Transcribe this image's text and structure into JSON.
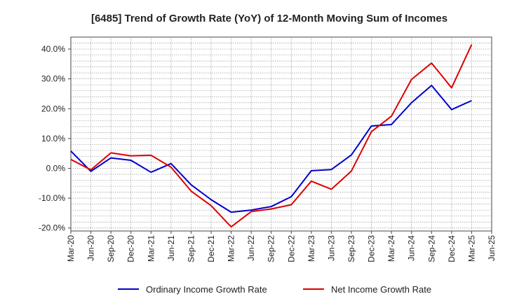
{
  "chart_data": {
    "type": "line",
    "title": "[6485]  Trend of Growth Rate (YoY) of 12-Month Moving Sum of Incomes",
    "xlabel": "",
    "ylabel": "",
    "x": [
      "Mar-20",
      "Jun-20",
      "Sep-20",
      "Dec-20",
      "Mar-21",
      "Jun-21",
      "Sep-21",
      "Dec-21",
      "Mar-22",
      "Jun-22",
      "Sep-22",
      "Dec-22",
      "Mar-23",
      "Jun-23",
      "Sep-23",
      "Dec-23",
      "Mar-24",
      "Jun-24",
      "Sep-24",
      "Dec-24",
      "Mar-25",
      "Jun-25"
    ],
    "x_tick_labels": [
      "Mar-20",
      "Jun-20",
      "Sep-20",
      "Dec-20",
      "Mar-21",
      "Jun-21",
      "Sep-21",
      "Dec-21",
      "Mar-22",
      "Jun-22",
      "Sep-22",
      "Dec-22",
      "Mar-23",
      "Jun-23",
      "Sep-23",
      "Dec-23",
      "Mar-24",
      "Jun-24",
      "Sep-24",
      "Dec-24",
      "Mar-25",
      "Jun-25"
    ],
    "ylim": [
      -21,
      44
    ],
    "y_ticks": [
      -20,
      -10,
      0,
      10,
      20,
      30,
      40
    ],
    "y_tick_labels": [
      "-20.0%",
      "-10.0%",
      "0.0%",
      "10.0%",
      "20.0%",
      "30.0%",
      "40.0%"
    ],
    "grid": true,
    "legend_position": "bottom",
    "series": [
      {
        "name": "Ordinary Income Growth Rate",
        "color": "#0000cc",
        "values": [
          5.8,
          -1.0,
          3.5,
          2.7,
          -1.3,
          1.6,
          -5.5,
          -10.5,
          -14.7,
          -14.0,
          -12.8,
          -9.5,
          -0.8,
          -0.4,
          4.5,
          14.2,
          14.7,
          22.0,
          27.8,
          19.7,
          22.7,
          null
        ]
      },
      {
        "name": "Net Income Growth Rate",
        "color": "#dd0000",
        "values": [
          3.0,
          -0.5,
          5.2,
          4.2,
          4.4,
          0.4,
          -7.6,
          -12.5,
          -19.6,
          -14.5,
          -13.6,
          -12.2,
          -4.3,
          -7.0,
          -0.9,
          12.3,
          17.5,
          29.8,
          35.3,
          27.0,
          41.5,
          null
        ]
      }
    ]
  }
}
